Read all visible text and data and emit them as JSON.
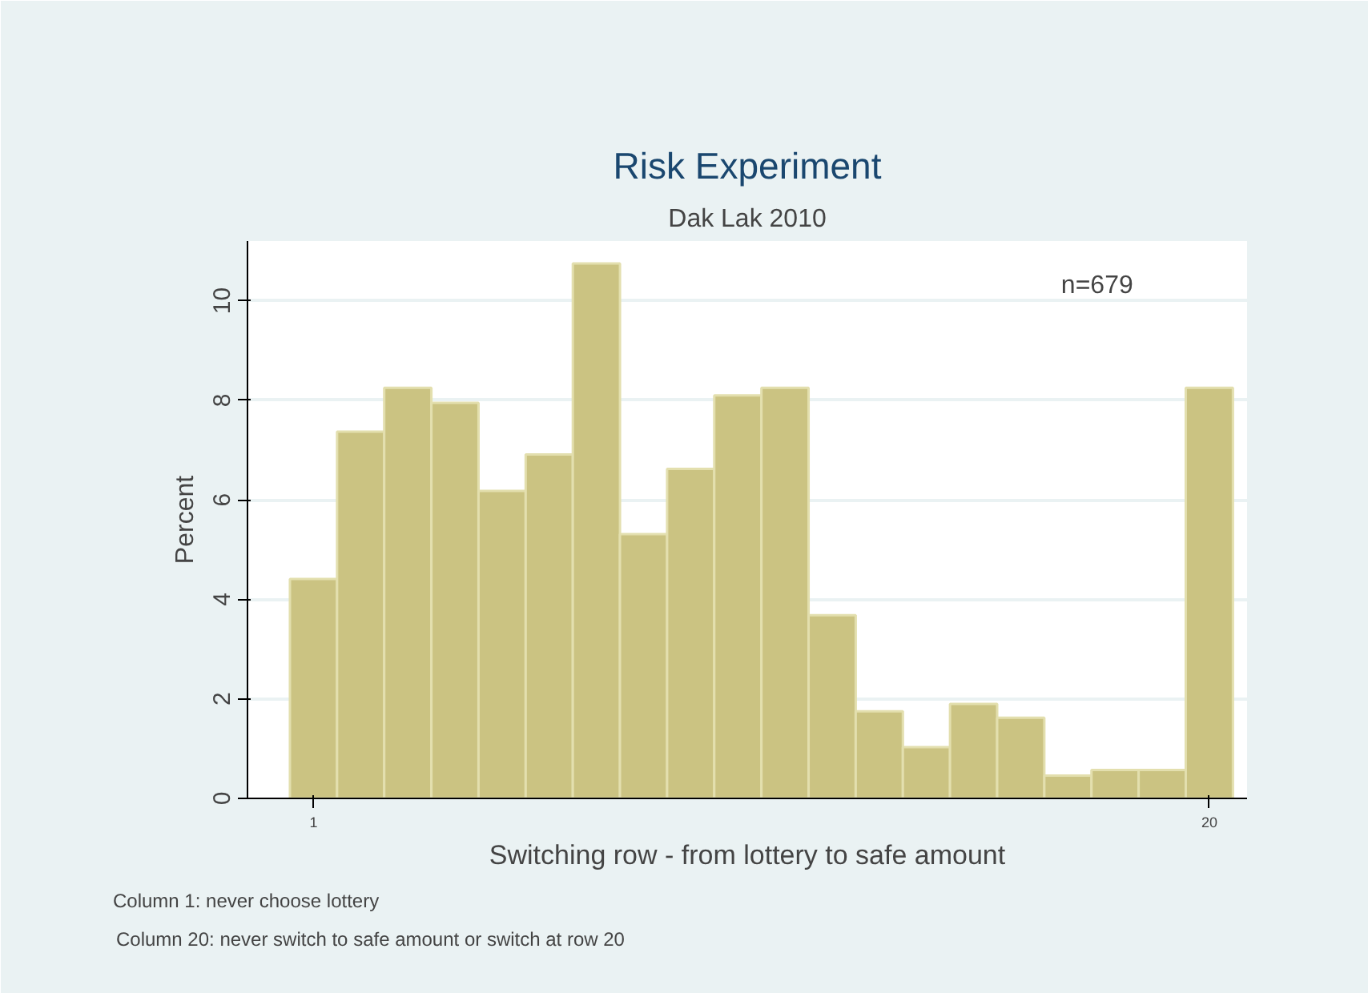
{
  "chart_data": {
    "type": "histogram",
    "title": "Risk Experiment",
    "subtitle": "Dak Lak 2010",
    "xlabel": "Switching row - from lottery to safe amount",
    "ylabel": "Percent",
    "bins": [
      0.5,
      1.5,
      2.5,
      3.5,
      4.5,
      5.5,
      6.5,
      7.5,
      8.5,
      9.5,
      10.5,
      11.5,
      12.5,
      13.5,
      14.5,
      15.5,
      16.5,
      17.5,
      18.5,
      19.5,
      20.5
    ],
    "values": [
      4.41,
      7.37,
      8.25,
      7.95,
      6.18,
      6.91,
      10.75,
      5.31,
      6.62,
      8.1,
      8.25,
      3.68,
      1.75,
      1.03,
      1.9,
      1.62,
      0.46,
      0.57,
      0.57,
      8.25
    ],
    "color": "#cbc382",
    "xlim": [
      -0.4,
      20.8
    ],
    "ylim": [
      0,
      11.2
    ],
    "xticks": [
      1,
      20
    ],
    "yticks": [
      0,
      2,
      4,
      6,
      8,
      10
    ],
    "grid": "y",
    "annotations": [
      "n=679",
      "Column 1: never choose lottery",
      "Column 20: never switch to safe amount or switch at row 20"
    ]
  }
}
